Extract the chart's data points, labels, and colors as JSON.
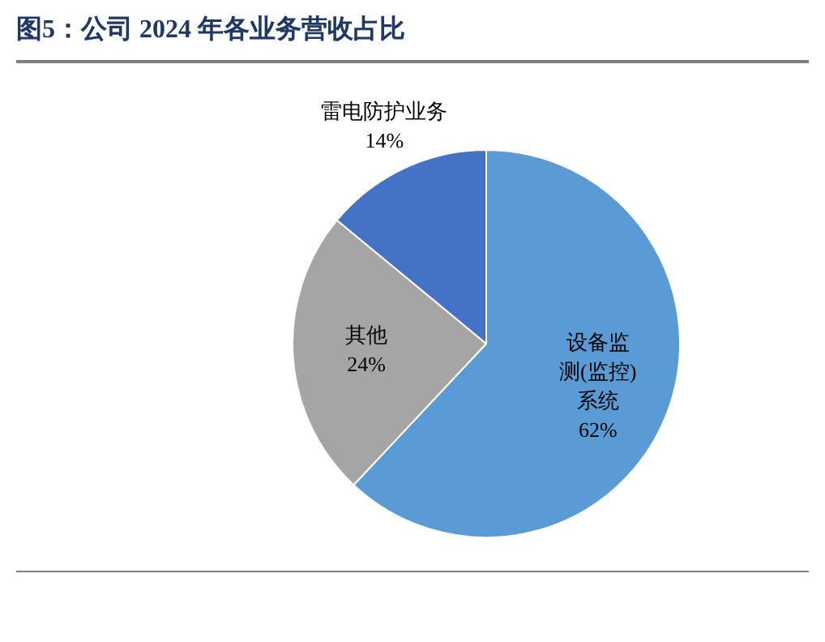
{
  "chart_data": {
    "type": "pie",
    "title": "图5：公司 2024 年各业务营收占比",
    "categories": [
      "设备监测(监控)系统",
      "其他",
      "雷电防护业务"
    ],
    "values": [
      62,
      24,
      14
    ],
    "colors": [
      "#5b9bd5",
      "#a5a5a5",
      "#4472c4"
    ],
    "value_labels": [
      "62%",
      "24%",
      "14%"
    ],
    "legend": false
  }
}
